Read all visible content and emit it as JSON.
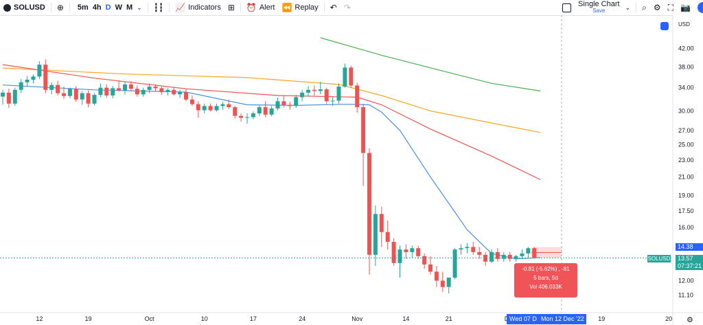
{
  "toolbar": {
    "symbol": "SOLUSD",
    "intervals": [
      "5m",
      "4h",
      "D",
      "W",
      "M"
    ],
    "active_interval": "D",
    "indicators_label": "Indicators",
    "alert_label": "Alert",
    "replay_label": "Replay",
    "layout_title": "Single Chart",
    "layout_save": "Save"
  },
  "price_axis": {
    "currency": "USD",
    "labels": [
      "42.00",
      "38.00",
      "34.00",
      "30.00",
      "27.00",
      "25.00",
      "23.00",
      "21.00",
      "19.00",
      "17.50",
      "16.00",
      "14.38",
      "13.57",
      "12.00",
      "11.10"
    ],
    "current_price": "13.57",
    "countdown": "07:37:21",
    "highlight_price": "14.38",
    "symbol_badge": "SOLUSD"
  },
  "time_axis": {
    "labels": [
      "12",
      "19",
      "Oct",
      "10",
      "17",
      "24",
      "Nov",
      "14",
      "21",
      "Dec",
      "19",
      "20"
    ],
    "range_start": "Wed 07 D",
    "range_end": "Mon 12 Dec '22"
  },
  "measure_tooltip": {
    "line1": "-0.81 (-5.62%) , -81",
    "line2": "5 bars, 5d",
    "line3": "Vol 406.033K"
  },
  "colors": {
    "up": "#26a69a",
    "down": "#ef5350",
    "ma_green": "#4caf50",
    "ma_orange": "#f5a623",
    "ma_red": "#ef5350",
    "ma_blue": "#4a90e2",
    "accent": "#2962ff"
  },
  "chart_data": {
    "type": "candlestick",
    "symbol": "SOLUSD",
    "timeframe": "D",
    "y_scale": "log",
    "ylim": [
      10.6,
      45
    ],
    "x_ticks": [
      "12",
      "19",
      "Oct",
      "10",
      "17",
      "24",
      "Nov",
      "14",
      "21",
      "Dec",
      "19",
      "20"
    ],
    "candles": [
      {
        "o": 32.4,
        "h": 33.6,
        "l": 31.0,
        "c": 33.1
      },
      {
        "o": 33.1,
        "h": 33.8,
        "l": 30.5,
        "c": 31.2
      },
      {
        "o": 31.2,
        "h": 34.0,
        "l": 30.8,
        "c": 33.6
      },
      {
        "o": 33.6,
        "h": 35.6,
        "l": 33.0,
        "c": 35.0
      },
      {
        "o": 35.0,
        "h": 36.2,
        "l": 34.2,
        "c": 35.5
      },
      {
        "o": 35.5,
        "h": 36.5,
        "l": 34.8,
        "c": 36.1
      },
      {
        "o": 36.1,
        "h": 39.2,
        "l": 35.6,
        "c": 38.5
      },
      {
        "o": 38.5,
        "h": 39.6,
        "l": 33.0,
        "c": 33.6
      },
      {
        "o": 33.6,
        "h": 35.0,
        "l": 32.8,
        "c": 34.5
      },
      {
        "o": 34.5,
        "h": 35.3,
        "l": 32.6,
        "c": 33.0
      },
      {
        "o": 33.0,
        "h": 34.2,
        "l": 32.0,
        "c": 32.5
      },
      {
        "o": 32.5,
        "h": 34.0,
        "l": 32.1,
        "c": 33.8
      },
      {
        "o": 33.8,
        "h": 34.3,
        "l": 31.5,
        "c": 31.9
      },
      {
        "o": 31.9,
        "h": 33.4,
        "l": 31.0,
        "c": 33.0
      },
      {
        "o": 33.0,
        "h": 33.5,
        "l": 30.6,
        "c": 31.2
      },
      {
        "o": 31.2,
        "h": 33.0,
        "l": 30.9,
        "c": 32.7
      },
      {
        "o": 32.7,
        "h": 34.8,
        "l": 32.3,
        "c": 34.0
      },
      {
        "o": 34.0,
        "h": 34.6,
        "l": 32.2,
        "c": 32.6
      },
      {
        "o": 32.6,
        "h": 34.3,
        "l": 32.1,
        "c": 33.9
      },
      {
        "o": 33.9,
        "h": 35.4,
        "l": 33.3,
        "c": 33.5
      },
      {
        "o": 33.5,
        "h": 35.1,
        "l": 32.8,
        "c": 34.6
      },
      {
        "o": 34.6,
        "h": 35.2,
        "l": 33.3,
        "c": 33.8
      },
      {
        "o": 33.8,
        "h": 34.4,
        "l": 32.4,
        "c": 32.8
      },
      {
        "o": 32.8,
        "h": 34.0,
        "l": 32.4,
        "c": 33.6
      },
      {
        "o": 33.6,
        "h": 34.8,
        "l": 33.0,
        "c": 34.2
      },
      {
        "o": 34.2,
        "h": 34.6,
        "l": 33.4,
        "c": 33.9
      },
      {
        "o": 33.9,
        "h": 34.2,
        "l": 32.7,
        "c": 33.2
      },
      {
        "o": 33.2,
        "h": 33.9,
        "l": 32.6,
        "c": 33.6
      },
      {
        "o": 33.6,
        "h": 34.0,
        "l": 32.6,
        "c": 32.8
      },
      {
        "o": 32.8,
        "h": 33.6,
        "l": 32.2,
        "c": 33.2
      },
      {
        "o": 33.2,
        "h": 33.8,
        "l": 31.6,
        "c": 31.9
      },
      {
        "o": 31.9,
        "h": 32.6,
        "l": 30.8,
        "c": 31.1
      },
      {
        "o": 31.1,
        "h": 31.6,
        "l": 28.9,
        "c": 30.1
      },
      {
        "o": 30.1,
        "h": 31.2,
        "l": 29.6,
        "c": 30.8
      },
      {
        "o": 30.8,
        "h": 31.2,
        "l": 29.9,
        "c": 30.1
      },
      {
        "o": 30.1,
        "h": 31.2,
        "l": 29.9,
        "c": 30.8
      },
      {
        "o": 30.8,
        "h": 31.5,
        "l": 30.2,
        "c": 31.1
      },
      {
        "o": 31.1,
        "h": 31.9,
        "l": 30.3,
        "c": 30.6
      },
      {
        "o": 30.6,
        "h": 30.8,
        "l": 28.8,
        "c": 29.2
      },
      {
        "o": 29.2,
        "h": 29.6,
        "l": 28.3,
        "c": 28.9
      },
      {
        "o": 28.9,
        "h": 29.6,
        "l": 28.0,
        "c": 29.0
      },
      {
        "o": 29.0,
        "h": 29.9,
        "l": 28.7,
        "c": 29.6
      },
      {
        "o": 29.6,
        "h": 30.9,
        "l": 29.2,
        "c": 30.6
      },
      {
        "o": 30.6,
        "h": 31.6,
        "l": 29.0,
        "c": 29.4
      },
      {
        "o": 29.4,
        "h": 30.8,
        "l": 29.1,
        "c": 30.4
      },
      {
        "o": 30.4,
        "h": 32.2,
        "l": 30.1,
        "c": 31.6
      },
      {
        "o": 31.6,
        "h": 32.6,
        "l": 30.6,
        "c": 31.0
      },
      {
        "o": 31.0,
        "h": 31.5,
        "l": 30.2,
        "c": 30.8
      },
      {
        "o": 30.8,
        "h": 32.7,
        "l": 30.5,
        "c": 32.3
      },
      {
        "o": 32.3,
        "h": 33.6,
        "l": 31.6,
        "c": 33.1
      },
      {
        "o": 33.1,
        "h": 34.3,
        "l": 32.4,
        "c": 33.6
      },
      {
        "o": 33.6,
        "h": 34.4,
        "l": 32.6,
        "c": 33.4
      },
      {
        "o": 33.4,
        "h": 35.1,
        "l": 32.8,
        "c": 33.7
      },
      {
        "o": 33.7,
        "h": 34.0,
        "l": 31.1,
        "c": 31.6
      },
      {
        "o": 31.6,
        "h": 32.3,
        "l": 30.8,
        "c": 31.7
      },
      {
        "o": 31.7,
        "h": 34.8,
        "l": 31.2,
        "c": 34.2
      },
      {
        "o": 34.2,
        "h": 38.7,
        "l": 34.0,
        "c": 37.9
      },
      {
        "o": 37.9,
        "h": 38.3,
        "l": 34.0,
        "c": 34.4
      },
      {
        "o": 34.4,
        "h": 34.9,
        "l": 29.7,
        "c": 30.6
      },
      {
        "o": 30.6,
        "h": 31.2,
        "l": 20.0,
        "c": 23.9
      },
      {
        "o": 23.9,
        "h": 24.5,
        "l": 12.4,
        "c": 13.8
      },
      {
        "o": 13.8,
        "h": 18.0,
        "l": 13.0,
        "c": 17.2
      },
      {
        "o": 17.2,
        "h": 17.9,
        "l": 14.4,
        "c": 15.6
      },
      {
        "o": 15.6,
        "h": 16.6,
        "l": 14.2,
        "c": 14.8
      },
      {
        "o": 14.8,
        "h": 15.1,
        "l": 13.0,
        "c": 13.2
      },
      {
        "o": 13.2,
        "h": 14.5,
        "l": 12.2,
        "c": 14.2
      },
      {
        "o": 14.2,
        "h": 14.6,
        "l": 13.5,
        "c": 14.0
      },
      {
        "o": 14.0,
        "h": 14.5,
        "l": 13.6,
        "c": 14.3
      },
      {
        "o": 14.3,
        "h": 14.5,
        "l": 13.5,
        "c": 13.7
      },
      {
        "o": 13.7,
        "h": 13.9,
        "l": 12.8,
        "c": 13.1
      },
      {
        "o": 13.1,
        "h": 13.7,
        "l": 12.4,
        "c": 12.6
      },
      {
        "o": 12.6,
        "h": 13.0,
        "l": 11.6,
        "c": 12.0
      },
      {
        "o": 12.0,
        "h": 12.6,
        "l": 11.3,
        "c": 11.6
      },
      {
        "o": 11.6,
        "h": 12.2,
        "l": 11.2,
        "c": 12.2
      },
      {
        "o": 12.2,
        "h": 14.3,
        "l": 12.1,
        "c": 14.2
      },
      {
        "o": 14.2,
        "h": 14.6,
        "l": 13.8,
        "c": 14.3
      },
      {
        "o": 14.3,
        "h": 14.7,
        "l": 13.9,
        "c": 14.4
      },
      {
        "o": 14.4,
        "h": 14.8,
        "l": 13.8,
        "c": 14.0
      },
      {
        "o": 14.0,
        "h": 14.4,
        "l": 13.5,
        "c": 13.8
      },
      {
        "o": 13.8,
        "h": 14.0,
        "l": 13.0,
        "c": 13.3
      },
      {
        "o": 13.3,
        "h": 14.2,
        "l": 13.2,
        "c": 14.0
      },
      {
        "o": 14.0,
        "h": 14.3,
        "l": 13.3,
        "c": 13.5
      },
      {
        "o": 13.5,
        "h": 14.0,
        "l": 13.3,
        "c": 13.8
      },
      {
        "o": 13.8,
        "h": 14.0,
        "l": 13.3,
        "c": 13.5
      },
      {
        "o": 13.5,
        "h": 13.8,
        "l": 13.3,
        "c": 13.7
      },
      {
        "o": 13.7,
        "h": 14.2,
        "l": 13.5,
        "c": 13.9
      },
      {
        "o": 13.9,
        "h": 14.4,
        "l": 13.6,
        "c": 14.3
      },
      {
        "o": 14.3,
        "h": 14.4,
        "l": 13.5,
        "c": 13.6
      }
    ],
    "moving_averages": [
      {
        "color": "green",
        "points": [
          [
            52,
            44.5
          ],
          [
            62,
            40.5
          ],
          [
            72,
            37.2
          ],
          [
            80,
            34.8
          ],
          [
            88,
            33.4
          ]
        ]
      },
      {
        "color": "orange",
        "points": [
          [
            0,
            37.8
          ],
          [
            20,
            36.6
          ],
          [
            40,
            35.9
          ],
          [
            55,
            34.6
          ],
          [
            62,
            32.6
          ],
          [
            70,
            30.0
          ],
          [
            80,
            28.1
          ],
          [
            88,
            26.7
          ]
        ]
      },
      {
        "color": "red",
        "points": [
          [
            0,
            38.5
          ],
          [
            15,
            35.8
          ],
          [
            30,
            33.8
          ],
          [
            45,
            32.6
          ],
          [
            58,
            32.3
          ],
          [
            62,
            31.0
          ],
          [
            70,
            27.2
          ],
          [
            80,
            23.5
          ],
          [
            88,
            20.7
          ]
        ]
      },
      {
        "color": "blue",
        "points": [
          [
            0,
            34.5
          ],
          [
            15,
            33.6
          ],
          [
            30,
            33.2
          ],
          [
            40,
            31.0
          ],
          [
            48,
            30.9
          ],
          [
            56,
            31.1
          ],
          [
            60,
            31.0
          ],
          [
            62,
            29.8
          ],
          [
            65,
            27.0
          ],
          [
            70,
            21.0
          ],
          [
            76,
            15.8
          ],
          [
            80,
            13.9
          ],
          [
            84,
            13.5
          ],
          [
            88,
            13.6
          ]
        ]
      }
    ]
  }
}
